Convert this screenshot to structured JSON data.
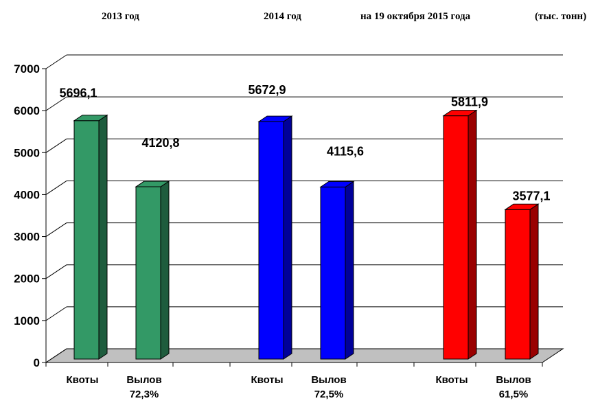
{
  "header": {
    "year1": "2013  год",
    "year2": "2014  год",
    "year3": "на 19 октября 2015 года",
    "unit": "(тыс. тонн)"
  },
  "chart_data": {
    "type": "bar",
    "groups": [
      "2013  год",
      "2014  год",
      "на 19 октября 2015 года"
    ],
    "categories": [
      "Квоты",
      "Вылов",
      "Квоты",
      "Вылов",
      "Квоты",
      "Вылов"
    ],
    "category_percents": [
      "",
      "72,3%",
      "",
      "72,5%",
      "",
      "61,5%"
    ],
    "values": [
      5696.1,
      4120.8,
      5672.9,
      4115.6,
      5811.9,
      3577.1
    ],
    "value_labels": [
      "5696,1",
      "4120,8",
      "5672,9",
      "4115,6",
      "5811,9",
      "3577,1"
    ],
    "yticks": [
      "0",
      "1000",
      "2000",
      "3000",
      "4000",
      "5000",
      "6000",
      "7000"
    ],
    "ylim": [
      0,
      7000
    ],
    "colors": [
      "#339966",
      "#339966",
      "#0000ff",
      "#0000ff",
      "#ff0000",
      "#ff0000"
    ],
    "side_colors": [
      "#1e5c3d",
      "#1e5c3d",
      "#000099",
      "#000099",
      "#990000",
      "#990000"
    ],
    "grid": true,
    "legend": "none"
  }
}
